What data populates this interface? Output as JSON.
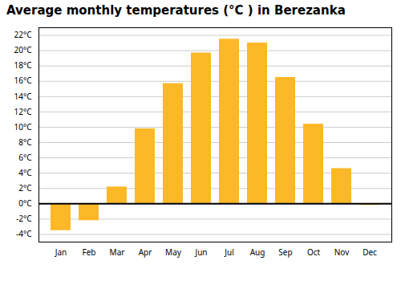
{
  "chart_data": {
    "type": "bar",
    "title": "Average monthly temperatures (°C ) in Berezanka",
    "categories": [
      "Jan",
      "Feb",
      "Mar",
      "Apr",
      "May",
      "Jun",
      "Jul",
      "Aug",
      "Sep",
      "Oct",
      "Nov",
      "Dec"
    ],
    "values": [
      -3.5,
      -2.2,
      2.2,
      9.8,
      15.7,
      19.7,
      21.5,
      21.0,
      16.5,
      10.4,
      4.6,
      -0.2
    ],
    "color": "#FDB827",
    "ylim": [
      -5,
      23
    ],
    "yticks": [
      {
        "value": -4,
        "label": "-4°C"
      },
      {
        "value": -2,
        "label": "-2°C"
      },
      {
        "value": 0,
        "label": "0°C"
      },
      {
        "value": 2,
        "label": "2°C"
      },
      {
        "value": 4,
        "label": "4°C"
      },
      {
        "value": 6,
        "label": "6°C"
      },
      {
        "value": 8,
        "label": "8°C"
      },
      {
        "value": 10,
        "label": "10°C"
      },
      {
        "value": 12,
        "label": "12°C"
      },
      {
        "value": 14,
        "label": "14°C"
      },
      {
        "value": 16,
        "label": "16°C"
      },
      {
        "value": 18,
        "label": "18°C"
      },
      {
        "value": 20,
        "label": "20°C"
      },
      {
        "value": 22,
        "label": "22°C"
      }
    ],
    "grid": true
  }
}
